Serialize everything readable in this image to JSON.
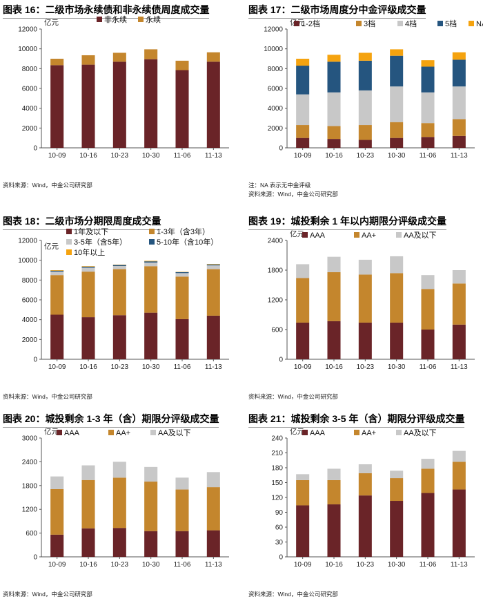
{
  "colors": {
    "dark": "#6a2428",
    "gold": "#c4862d",
    "gray": "#c8c8c8",
    "blue": "#25557f",
    "orange": "#f5a30f",
    "axis": "#555555"
  },
  "chart_data": [
    {
      "type": "bar",
      "stacked": true,
      "title": "图表 16：二级市场永续债和非永续债周度成交量",
      "unit": "亿元",
      "categories": [
        "10-09",
        "10-16",
        "10-23",
        "10-30",
        "11-06",
        "11-13"
      ],
      "ylim": [
        0,
        12000
      ],
      "yticks": [
        0,
        2000,
        4000,
        6000,
        8000,
        10000,
        12000
      ],
      "legend_position": "top",
      "series": [
        {
          "name": "非永续",
          "color": "dark",
          "values": [
            8350,
            8400,
            8700,
            8950,
            7850,
            8700
          ]
        },
        {
          "name": "永续",
          "color": "gold",
          "values": [
            650,
            950,
            900,
            1000,
            950,
            950
          ]
        }
      ],
      "notes": [
        "资料来源：Wind，中金公司研究部"
      ]
    },
    {
      "type": "bar",
      "stacked": true,
      "title": "图表 17：二级市场周度分中金评级成交量",
      "unit": "亿元",
      "categories": [
        "10-09",
        "10-16",
        "10-23",
        "10-30",
        "11-06",
        "11-13"
      ],
      "ylim": [
        0,
        12000
      ],
      "yticks": [
        0,
        2000,
        4000,
        6000,
        8000,
        10000,
        12000
      ],
      "legend_position": "top",
      "series": [
        {
          "name": "1-2档",
          "color": "dark",
          "values": [
            1000,
            900,
            800,
            1000,
            1100,
            1200
          ]
        },
        {
          "name": "3档",
          "color": "gold",
          "values": [
            1300,
            1300,
            1500,
            1600,
            1400,
            1700
          ]
        },
        {
          "name": "4档",
          "color": "gray",
          "values": [
            3100,
            3400,
            3500,
            3600,
            3100,
            3300
          ]
        },
        {
          "name": "5档",
          "color": "blue",
          "values": [
            2900,
            3100,
            3000,
            3100,
            2600,
            2700
          ]
        },
        {
          "name": "NA",
          "color": "orange",
          "values": [
            700,
            700,
            800,
            650,
            650,
            750
          ]
        }
      ],
      "notes": [
        "注：NA 表示无中金评级",
        "资料来源：Wind，中金公司研究部"
      ]
    },
    {
      "type": "bar",
      "stacked": true,
      "title": "图表 18：二级市场分期限周度成交量",
      "unit": "亿元",
      "categories": [
        "10-09",
        "10-16",
        "10-23",
        "10-30",
        "11-06",
        "11-13"
      ],
      "ylim": [
        0,
        12000
      ],
      "yticks": [
        0,
        2000,
        4000,
        6000,
        8000,
        10000,
        12000
      ],
      "legend_position": "top",
      "series": [
        {
          "name": "1年及以下",
          "color": "dark",
          "values": [
            4500,
            4250,
            4450,
            4700,
            4050,
            4400
          ]
        },
        {
          "name": "1-3年（含3年）",
          "color": "gold",
          "values": [
            4000,
            4600,
            4650,
            4700,
            4300,
            4700
          ]
        },
        {
          "name": "3-5年（含5年）",
          "color": "gray",
          "values": [
            350,
            400,
            320,
            370,
            350,
            380
          ]
        },
        {
          "name": "5-10年（含10年）",
          "color": "blue",
          "values": [
            100,
            100,
            100,
            120,
            100,
            100
          ]
        },
        {
          "name": "10年以上",
          "color": "orange",
          "values": [
            50,
            50,
            30,
            50,
            30,
            40
          ]
        }
      ],
      "notes": [
        "资料来源：Wind，中金公司研究部"
      ]
    },
    {
      "type": "bar",
      "stacked": true,
      "title": "图表 19：城投剩余 1 年以内期限分评级成交量",
      "unit": "亿元",
      "categories": [
        "10-09",
        "10-16",
        "10-23",
        "10-30",
        "11-06",
        "11-13"
      ],
      "ylim": [
        0,
        2400
      ],
      "yticks": [
        0,
        600,
        1200,
        1800,
        2400
      ],
      "legend_position": "top",
      "series": [
        {
          "name": "AAA",
          "color": "dark",
          "values": [
            740,
            770,
            740,
            740,
            600,
            700
          ]
        },
        {
          "name": "AA+",
          "color": "gold",
          "values": [
            900,
            990,
            970,
            1000,
            820,
            830
          ]
        },
        {
          "name": "AA及以下",
          "color": "gray",
          "values": [
            280,
            310,
            300,
            340,
            280,
            270
          ]
        }
      ],
      "notes": [
        "资料来源：Wind，中金公司研究部"
      ]
    },
    {
      "type": "bar",
      "stacked": true,
      "title": "图表 20：城投剩余 1-3 年（含）期限分评级成交量",
      "unit": "亿元",
      "categories": [
        "10-09",
        "10-16",
        "10-23",
        "10-30",
        "11-06",
        "11-13"
      ],
      "ylim": [
        0,
        3000
      ],
      "yticks": [
        0,
        600,
        1200,
        1800,
        2400,
        3000
      ],
      "legend_position": "top",
      "series": [
        {
          "name": "AAA",
          "color": "dark",
          "values": [
            560,
            720,
            730,
            650,
            650,
            670
          ]
        },
        {
          "name": "AA+",
          "color": "gold",
          "values": [
            1150,
            1220,
            1270,
            1250,
            1050,
            1090
          ]
        },
        {
          "name": "AA及以下",
          "color": "gray",
          "values": [
            320,
            370,
            400,
            370,
            300,
            380
          ]
        }
      ],
      "notes": [
        "资料来源：Wind，中金公司研究部"
      ]
    },
    {
      "type": "bar",
      "stacked": true,
      "title": "图表 21：城投剩余 3-5 年（含）期限分评级成交量",
      "unit": "亿元",
      "categories": [
        "10-09",
        "10-16",
        "10-23",
        "10-30",
        "11-06",
        "11-13"
      ],
      "ylim": [
        0,
        240
      ],
      "yticks": [
        0,
        30,
        60,
        90,
        120,
        150,
        180,
        210,
        240
      ],
      "legend_position": "top",
      "series": [
        {
          "name": "AAA",
          "color": "dark",
          "values": [
            104,
            106,
            124,
            113,
            129,
            136
          ]
        },
        {
          "name": "AA+",
          "color": "gold",
          "values": [
            51,
            49,
            45,
            46,
            49,
            56
          ]
        },
        {
          "name": "AA及以下",
          "color": "gray",
          "values": [
            12,
            23,
            18,
            15,
            20,
            22
          ]
        }
      ],
      "notes": [
        "资料来源：Wind，中金公司研究部"
      ]
    }
  ]
}
